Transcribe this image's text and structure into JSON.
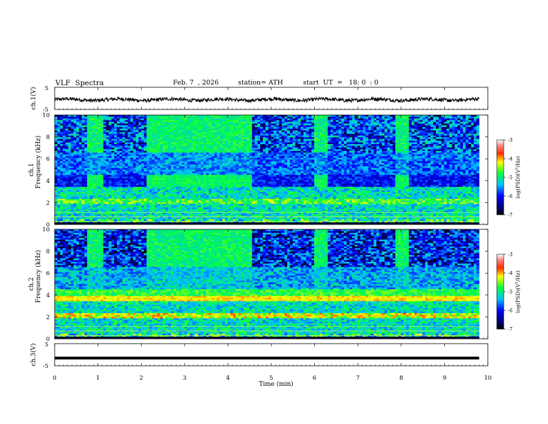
{
  "header": {
    "title": "VLF  Spectra",
    "date": "Feb. 7  , 2026",
    "station": "station= ATH",
    "start": "start  UT  =   18: 0  : 0"
  },
  "chart_data": [
    {
      "type": "line",
      "name": "ch1-waveform",
      "ylabel": "ch.1(V)",
      "ylim": [
        -5,
        5
      ],
      "yticks": [
        -5,
        5
      ],
      "xlim": [
        0,
        10
      ],
      "description_series": "noisy waveform around -0.5 V"
    },
    {
      "type": "heatmap",
      "name": "ch1-spectrogram",
      "ylabel": "ch.1\nFrequency (kHz)",
      "ylabel_channel": "ch.1",
      "ylabel_freq": "Frequency  (kHz)",
      "ylim": [
        0,
        10
      ],
      "yticks": [
        0,
        2,
        4,
        6,
        8,
        10
      ],
      "xlim": [
        0,
        10
      ],
      "colorbar": {
        "label": "log(PSD) (V²/Hz)",
        "label_text": "log(PSD)(V",
        "label_sup": "2",
        "label_end": "/Hz)",
        "range": [
          -7,
          -3
        ],
        "ticks": [
          "-3",
          "-4",
          "-5",
          "-6",
          "-7"
        ]
      },
      "active_intervals_min": [
        [
          0,
          0.75
        ],
        [
          1.1,
          2.15
        ],
        [
          4.55,
          6.0
        ],
        [
          6.3,
          7.85
        ],
        [
          8.2,
          9.8
        ]
      ],
      "quiet_intervals_min": [
        [
          0.75,
          1.1
        ],
        [
          2.15,
          4.55
        ],
        [
          6.0,
          6.3
        ],
        [
          7.85,
          8.2
        ]
      ]
    },
    {
      "type": "heatmap",
      "name": "ch2-spectrogram",
      "ylabel_channel": "ch.2",
      "ylabel_freq": "Frequency  (kHz)",
      "ylim": [
        0,
        10
      ],
      "yticks": [
        0,
        2,
        4,
        6,
        8,
        10
      ],
      "xlim": [
        0,
        10
      ],
      "colorbar": {
        "label_text": "log(PSD)(V",
        "label_sup": "2",
        "label_end": "/Hz)",
        "range": [
          -7,
          -3
        ],
        "ticks": [
          "-3",
          "-4",
          "-5",
          "-6",
          "-7"
        ]
      }
    },
    {
      "type": "line",
      "name": "ch3-waveform",
      "ylabel": "ch.3(V)",
      "ylim": [
        -5,
        5
      ],
      "yticks": [
        -5,
        5
      ],
      "xlim": [
        0,
        10
      ],
      "value": -1.5
    }
  ],
  "xaxis": {
    "label": "Time  (min)",
    "ticks": [
      "0",
      "1",
      "2",
      "3",
      "4",
      "5",
      "6",
      "7",
      "8",
      "9",
      "10"
    ],
    "range": [
      0,
      10
    ],
    "data_end": 9.8
  },
  "colors": {
    "black": "#000000",
    "background": "#ffffff"
  }
}
